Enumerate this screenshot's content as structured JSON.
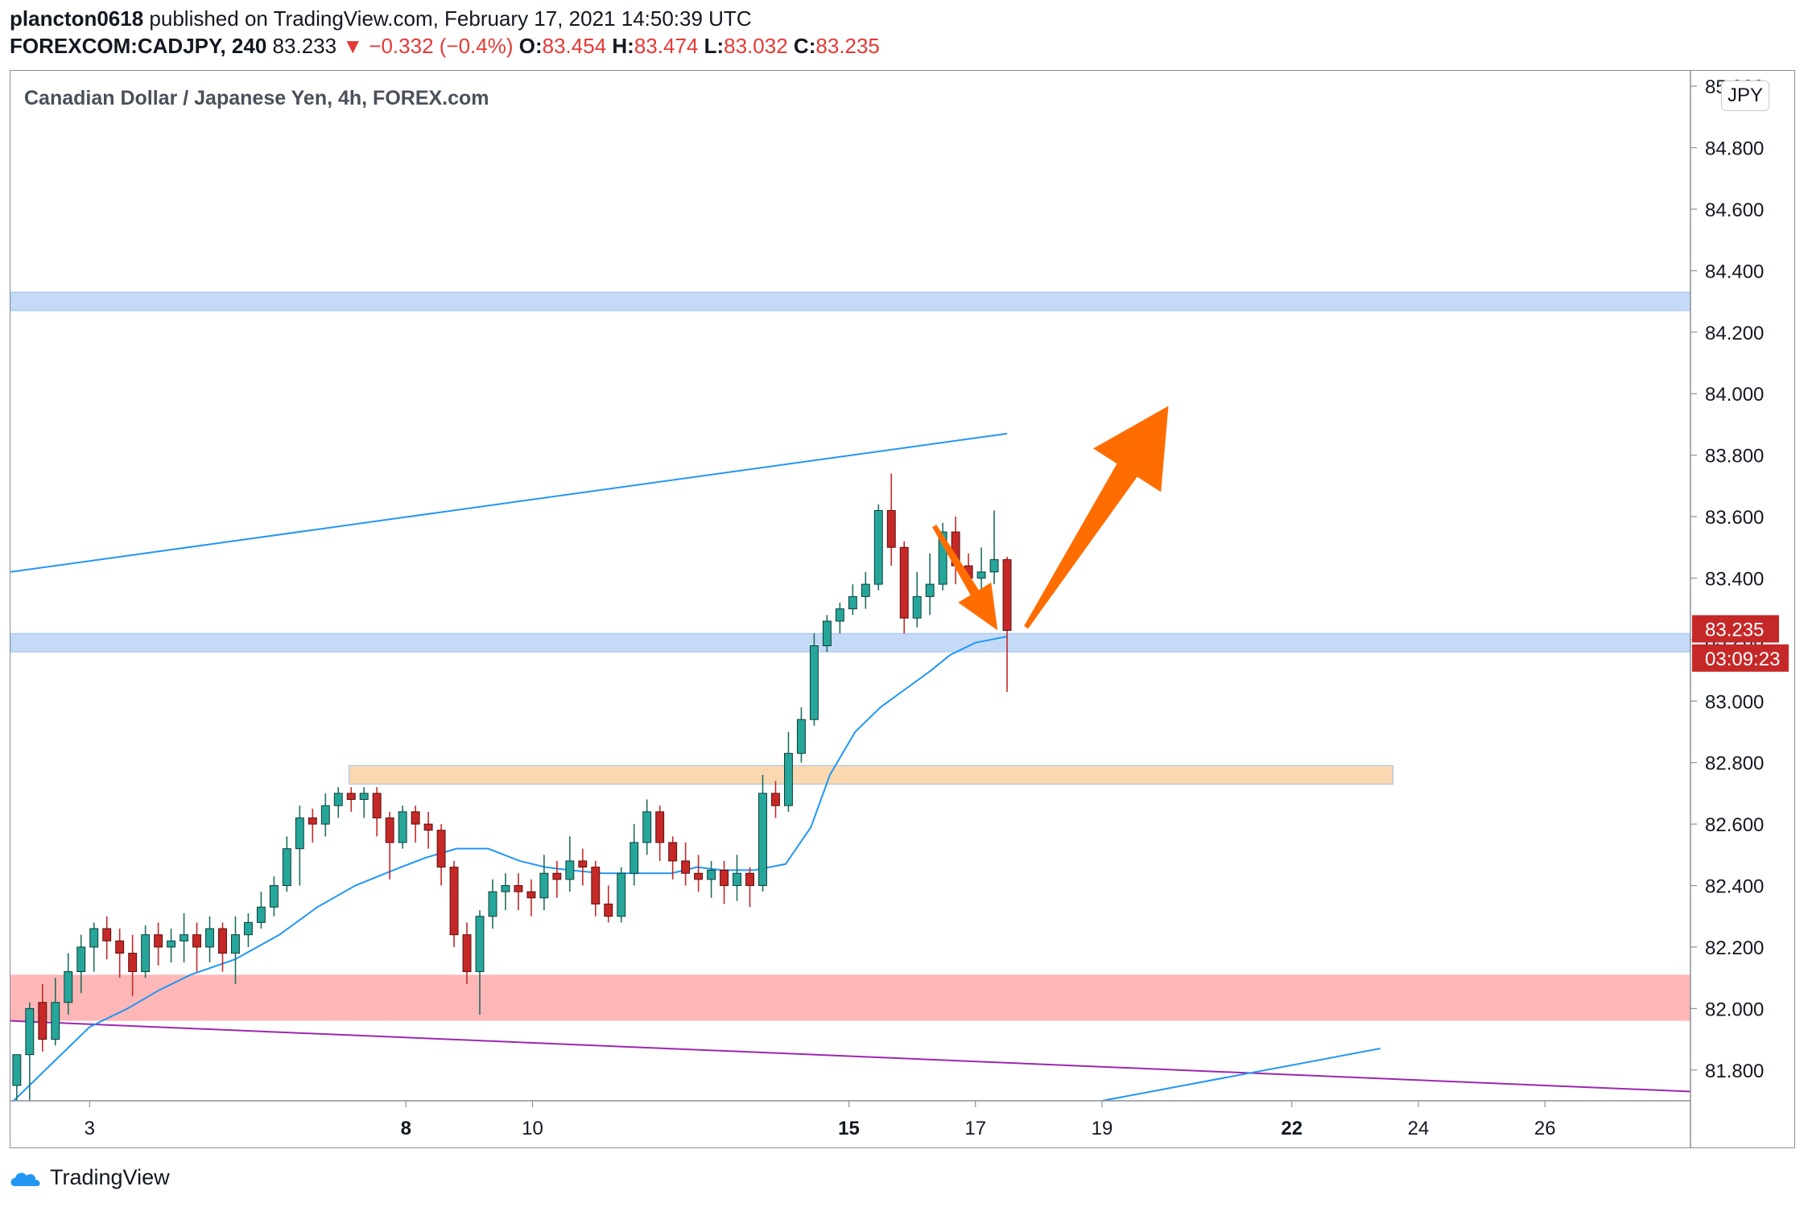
{
  "header": {
    "publisher": "plancton0618",
    "published_text": "published on TradingView.com, February 17, 2021 14:50:39 UTC",
    "symbol": "FOREXCOM:CADJPY, 240",
    "last": "83.233",
    "change": "−0.332 (−0.4%)",
    "o_label": "O:",
    "o": "83.454",
    "h_label": "H:",
    "h": "83.474",
    "l_label": "L:",
    "l": "83.032",
    "c_label": "C:",
    "c": "83.235"
  },
  "currency_badge": "JPY",
  "brand": "TradingView",
  "colors": {
    "up": "#26a69a",
    "down": "#c62828",
    "ma": "#2196f3",
    "blue_zone": "#c4daf6",
    "orange_zone": "#fbd8b0",
    "red_zone": "#feb7b7",
    "purple_line": "#9c27b0",
    "arrow": "#ff6d00",
    "price_label": "#c62828"
  },
  "chart_data": {
    "type": "candlestick",
    "title": "Canadian Dollar / Japanese Yen, 4h, FOREX.com",
    "ylim": [
      81.7,
      85.05
    ],
    "x_range": [
      1.75,
      28.3
    ],
    "y_ticks": [
      "81.800",
      "82.000",
      "82.200",
      "82.400",
      "82.600",
      "82.800",
      "83.000",
      "83.200",
      "83.400",
      "83.600",
      "83.800",
      "84.000",
      "84.200",
      "84.400",
      "84.600",
      "84.800",
      "85.000"
    ],
    "x_ticks": [
      {
        "day": 3,
        "label": "3"
      },
      {
        "day": 8,
        "label": "8"
      },
      {
        "day": 10,
        "label": "10"
      },
      {
        "day": 15,
        "label": "15"
      },
      {
        "day": 17,
        "label": "17"
      },
      {
        "day": 19,
        "label": "19"
      },
      {
        "day": 22,
        "label": "22"
      },
      {
        "day": 24,
        "label": "24"
      },
      {
        "day": 26,
        "label": "26"
      }
    ],
    "candles": [
      [
        81.75,
        81.85,
        81.7,
        81.85
      ],
      [
        81.85,
        82.0,
        81.7,
        82.02
      ],
      [
        82.02,
        81.9,
        81.86,
        82.08
      ],
      [
        81.9,
        82.02,
        81.88,
        82.1
      ],
      [
        82.02,
        82.12,
        81.98,
        82.18
      ],
      [
        82.12,
        82.2,
        82.05,
        82.24
      ],
      [
        82.2,
        82.26,
        82.12,
        82.28
      ],
      [
        82.26,
        82.22,
        82.16,
        82.3
      ],
      [
        82.22,
        82.18,
        82.1,
        82.26
      ],
      [
        82.18,
        82.12,
        82.04,
        82.24
      ],
      [
        82.12,
        82.24,
        82.1,
        82.27
      ],
      [
        82.24,
        82.2,
        82.14,
        82.28
      ],
      [
        82.2,
        82.22,
        82.15,
        82.26
      ],
      [
        82.22,
        82.24,
        82.15,
        82.31
      ],
      [
        82.24,
        82.2,
        82.12,
        82.28
      ],
      [
        82.2,
        82.26,
        82.15,
        82.3
      ],
      [
        82.26,
        82.18,
        82.12,
        82.28
      ],
      [
        82.18,
        82.24,
        82.08,
        82.3
      ],
      [
        82.24,
        82.28,
        82.2,
        82.31
      ],
      [
        82.28,
        82.33,
        82.26,
        82.38
      ],
      [
        82.33,
        82.4,
        82.3,
        82.43
      ],
      [
        82.4,
        82.52,
        82.38,
        82.56
      ],
      [
        82.52,
        82.62,
        82.4,
        82.66
      ],
      [
        82.62,
        82.6,
        82.54,
        82.65
      ],
      [
        82.6,
        82.66,
        82.56,
        82.7
      ],
      [
        82.66,
        82.7,
        82.62,
        82.72
      ],
      [
        82.7,
        82.68,
        82.64,
        82.72
      ],
      [
        82.68,
        82.7,
        82.62,
        82.72
      ],
      [
        82.7,
        82.62,
        82.56,
        82.72
      ],
      [
        82.62,
        82.54,
        82.42,
        82.64
      ],
      [
        82.54,
        82.64,
        82.52,
        82.66
      ],
      [
        82.64,
        82.6,
        82.54,
        82.66
      ],
      [
        82.6,
        82.58,
        82.52,
        82.64
      ],
      [
        82.58,
        82.46,
        82.4,
        82.6
      ],
      [
        82.46,
        82.24,
        82.2,
        82.48
      ],
      [
        82.24,
        82.12,
        82.08,
        82.28
      ],
      [
        82.12,
        82.3,
        81.98,
        82.32
      ],
      [
        82.3,
        82.38,
        82.26,
        82.42
      ],
      [
        82.38,
        82.4,
        82.32,
        82.44
      ],
      [
        82.4,
        82.38,
        82.32,
        82.44
      ],
      [
        82.38,
        82.36,
        82.3,
        82.42
      ],
      [
        82.36,
        82.44,
        82.32,
        82.5
      ],
      [
        82.44,
        82.42,
        82.36,
        82.48
      ],
      [
        82.42,
        82.48,
        82.38,
        82.56
      ],
      [
        82.48,
        82.46,
        82.4,
        82.52
      ],
      [
        82.46,
        82.34,
        82.3,
        82.48
      ],
      [
        82.34,
        82.3,
        82.28,
        82.4
      ],
      [
        82.3,
        82.44,
        82.28,
        82.46
      ],
      [
        82.44,
        82.54,
        82.4,
        82.6
      ],
      [
        82.54,
        82.64,
        82.5,
        82.68
      ],
      [
        82.64,
        82.54,
        82.48,
        82.66
      ],
      [
        82.54,
        82.48,
        82.42,
        82.56
      ],
      [
        82.48,
        82.44,
        82.4,
        82.54
      ],
      [
        82.44,
        82.42,
        82.38,
        82.5
      ],
      [
        82.42,
        82.45,
        82.36,
        82.48
      ],
      [
        82.45,
        82.4,
        82.34,
        82.48
      ],
      [
        82.4,
        82.44,
        82.35,
        82.5
      ],
      [
        82.44,
        82.4,
        82.33,
        82.46
      ],
      [
        82.4,
        82.7,
        82.38,
        82.76
      ],
      [
        82.7,
        82.66,
        82.62,
        82.74
      ],
      [
        82.66,
        82.83,
        82.64,
        82.9
      ],
      [
        82.83,
        82.94,
        82.8,
        82.98
      ],
      [
        82.94,
        83.18,
        82.92,
        83.22
      ],
      [
        83.18,
        83.26,
        83.16,
        83.28
      ],
      [
        83.26,
        83.3,
        83.22,
        83.32
      ],
      [
        83.3,
        83.34,
        83.28,
        83.38
      ],
      [
        83.34,
        83.38,
        83.3,
        83.42
      ],
      [
        83.38,
        83.62,
        83.36,
        83.64
      ],
      [
        83.62,
        83.5,
        83.44,
        83.74
      ],
      [
        83.5,
        83.27,
        83.22,
        83.52
      ],
      [
        83.27,
        83.34,
        83.24,
        83.42
      ],
      [
        83.34,
        83.38,
        83.28,
        83.48
      ],
      [
        83.38,
        83.55,
        83.36,
        83.58
      ],
      [
        83.55,
        83.44,
        83.38,
        83.6
      ],
      [
        83.44,
        83.4,
        83.36,
        83.48
      ],
      [
        83.4,
        83.42,
        83.36,
        83.5
      ],
      [
        83.42,
        83.46,
        83.38,
        83.62
      ],
      [
        83.46,
        83.23,
        83.03,
        83.47
      ]
    ],
    "ma_series": [
      [
        1.8,
        81.7
      ],
      [
        2.4,
        81.82
      ],
      [
        3.0,
        81.94
      ],
      [
        3.6,
        82.0
      ],
      [
        4.1,
        82.06
      ],
      [
        4.6,
        82.11
      ],
      [
        5.3,
        82.16
      ],
      [
        6.0,
        82.24
      ],
      [
        6.6,
        82.33
      ],
      [
        7.2,
        82.4
      ],
      [
        7.8,
        82.45
      ],
      [
        8.3,
        82.49
      ],
      [
        8.8,
        82.52
      ],
      [
        9.3,
        82.52
      ],
      [
        9.8,
        82.48
      ],
      [
        10.2,
        82.46
      ],
      [
        10.6,
        82.45
      ],
      [
        11.1,
        82.44
      ],
      [
        11.6,
        82.44
      ],
      [
        12.2,
        82.44
      ],
      [
        12.6,
        82.46
      ],
      [
        13.0,
        82.45
      ],
      [
        13.5,
        82.45
      ],
      [
        14.0,
        82.47
      ],
      [
        14.4,
        82.59
      ],
      [
        14.7,
        82.76
      ],
      [
        15.1,
        82.9
      ],
      [
        15.5,
        82.98
      ],
      [
        15.9,
        83.04
      ],
      [
        16.3,
        83.1
      ],
      [
        16.6,
        83.15
      ],
      [
        17.0,
        83.19
      ],
      [
        17.5,
        83.21
      ]
    ],
    "zones": [
      {
        "name": "resistance",
        "color": "#c4daf6",
        "y1": 84.27,
        "y2": 84.33,
        "x1": 1.75,
        "x2": 28.3
      },
      {
        "name": "support",
        "color": "#c4daf6",
        "y1": 83.16,
        "y2": 83.22,
        "x1": 1.75,
        "x2": 28.3
      },
      {
        "name": "prior-high",
        "color": "#fbd8b0",
        "y1": 82.73,
        "y2": 82.79,
        "x1": 7.1,
        "x2": 23.6
      },
      {
        "name": "demand",
        "color": "#feb7b7",
        "y1": 81.96,
        "y2": 82.11,
        "x1": 1.75,
        "x2": 28.3
      }
    ],
    "trendlines": [
      {
        "name": "upper-channel",
        "color": "#2196f3",
        "x1": 1.75,
        "y1": 83.42,
        "x2": 17.5,
        "y2": 83.87
      },
      {
        "name": "purple-trend",
        "color": "#9c27b0",
        "x1": 1.75,
        "y1": 81.96,
        "x2": 28.3,
        "y2": 81.73
      },
      {
        "name": "lower-channel",
        "color": "#2196f3",
        "x1": 19.0,
        "y1": 81.7,
        "x2": 23.4,
        "y2": 81.87
      }
    ],
    "arrows": [
      {
        "name": "down-arrow",
        "x1": 16.35,
        "y1": 83.57,
        "x2": 17.35,
        "y2": 83.23,
        "color": "#ff6d00"
      },
      {
        "name": "up-arrow",
        "x1": 17.8,
        "y1": 83.24,
        "x2": 20.05,
        "y2": 83.96,
        "color": "#ff6d00"
      }
    ],
    "price_labels": [
      {
        "text": "83.235",
        "price": 83.235
      },
      {
        "text": "03:09:23",
        "price": 83.14
      }
    ]
  }
}
